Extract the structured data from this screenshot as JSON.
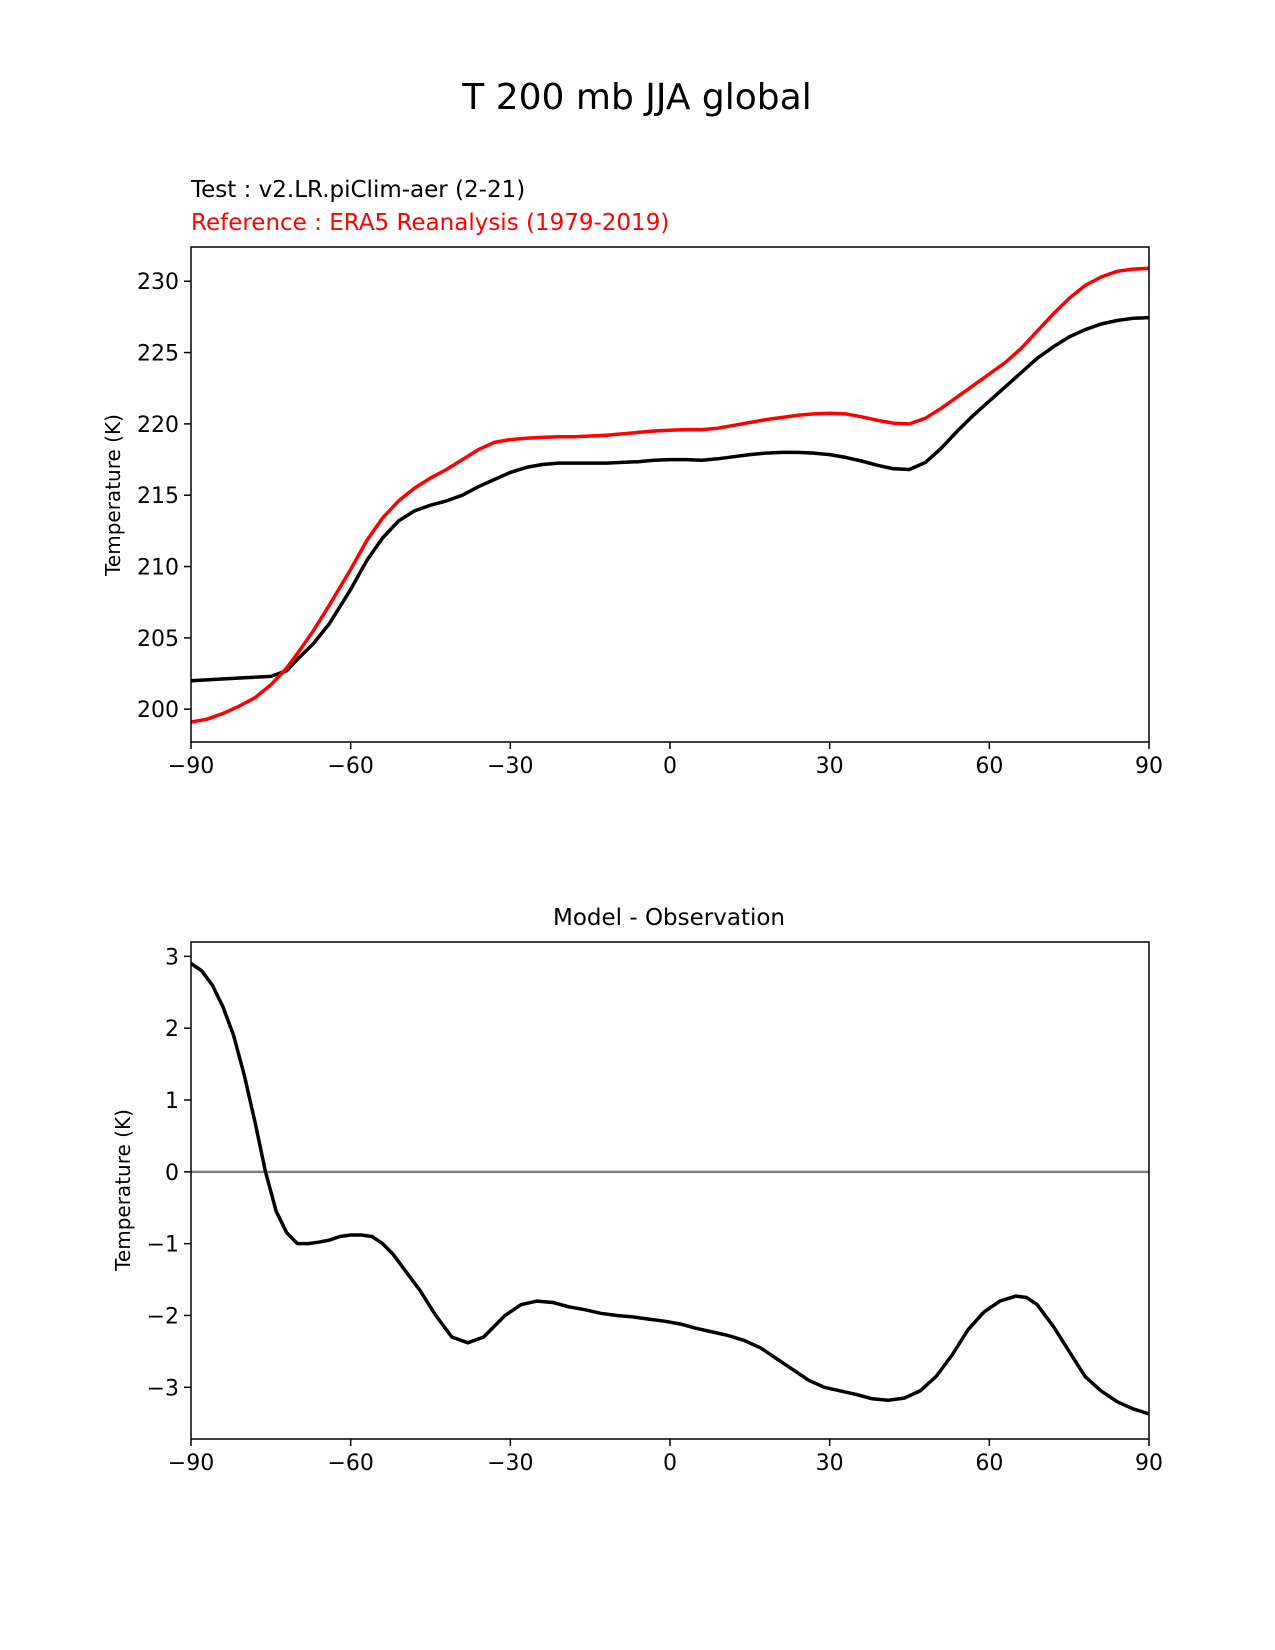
{
  "figure_title": "T 200 mb JJA global",
  "chart_data": [
    {
      "type": "line",
      "test_label": "Test : v2.LR.piClim-aer (2-21)",
      "reference_label": "Reference : ERA5 Reanalysis (1979-2019)",
      "xlabel": "",
      "ylabel": "Temperature (K)",
      "xlim": [
        -90,
        90
      ],
      "ylim": [
        197.7,
        232.4
      ],
      "xticks": [
        -90,
        -60,
        -30,
        0,
        30,
        60,
        90
      ],
      "xtick_labels": [
        "−90",
        "−60",
        "−30",
        "0",
        "30",
        "60",
        "90"
      ],
      "yticks": [
        200,
        205,
        210,
        215,
        220,
        225,
        230
      ],
      "ytick_labels": [
        "200",
        "205",
        "210",
        "215",
        "220",
        "225",
        "230"
      ],
      "grid": false,
      "colors": {
        "test": "#000000",
        "reference": "#ff0000"
      },
      "series": [
        {
          "role": "test",
          "x": [
            -90,
            -85,
            -80,
            -75,
            -72,
            -70,
            -67,
            -64,
            -60,
            -57,
            -54,
            -51,
            -48,
            -45,
            -42,
            -39,
            -36,
            -33,
            -30,
            -27,
            -24,
            -21,
            -18,
            -15,
            -12,
            -9,
            -6,
            -3,
            0,
            3,
            6,
            9,
            12,
            15,
            18,
            21,
            24,
            27,
            30,
            33,
            36,
            39,
            42,
            45,
            48,
            51,
            54,
            57,
            60,
            63,
            66,
            69,
            72,
            75,
            78,
            81,
            84,
            87,
            90
          ],
          "values": [
            202.0,
            202.1,
            202.2,
            202.3,
            202.7,
            203.5,
            204.6,
            206.0,
            208.4,
            210.4,
            212.0,
            213.2,
            213.9,
            214.3,
            214.6,
            215.0,
            215.6,
            216.1,
            216.6,
            216.95,
            217.15,
            217.25,
            217.25,
            217.25,
            217.25,
            217.3,
            217.35,
            217.45,
            217.5,
            217.5,
            217.45,
            217.55,
            217.7,
            217.85,
            217.95,
            218.0,
            218.0,
            217.95,
            217.85,
            217.65,
            217.4,
            217.1,
            216.85,
            216.8,
            217.3,
            218.3,
            219.5,
            220.6,
            221.6,
            222.6,
            223.6,
            224.6,
            225.4,
            226.1,
            226.6,
            227.0,
            227.25,
            227.4,
            227.45
          ]
        },
        {
          "role": "reference",
          "x": [
            -90,
            -87,
            -84,
            -81,
            -78,
            -75,
            -72,
            -70,
            -67,
            -64,
            -60,
            -57,
            -54,
            -51,
            -48,
            -45,
            -42,
            -39,
            -36,
            -33,
            -30,
            -27,
            -24,
            -21,
            -18,
            -15,
            -12,
            -9,
            -6,
            -3,
            0,
            3,
            6,
            9,
            12,
            15,
            18,
            21,
            24,
            27,
            30,
            33,
            36,
            39,
            42,
            45,
            48,
            51,
            54,
            57,
            60,
            63,
            66,
            69,
            72,
            75,
            78,
            81,
            84,
            87,
            90
          ],
          "values": [
            199.1,
            199.3,
            199.7,
            200.2,
            200.8,
            201.7,
            202.9,
            203.9,
            205.5,
            207.3,
            209.8,
            211.8,
            213.4,
            214.6,
            215.5,
            216.2,
            216.8,
            217.5,
            218.2,
            218.7,
            218.9,
            219.0,
            219.05,
            219.1,
            219.1,
            219.15,
            219.2,
            219.3,
            219.4,
            219.5,
            219.55,
            219.6,
            219.6,
            219.7,
            219.9,
            220.1,
            220.3,
            220.45,
            220.6,
            220.7,
            220.75,
            220.7,
            220.5,
            220.25,
            220.05,
            220.0,
            220.4,
            221.1,
            221.9,
            222.7,
            223.5,
            224.3,
            225.3,
            226.5,
            227.7,
            228.8,
            229.7,
            230.3,
            230.7,
            230.85,
            230.9
          ]
        }
      ]
    },
    {
      "type": "line",
      "title": "Model - Observation",
      "xlabel": "",
      "ylabel": "Temperature (K)",
      "xlim": [
        -90,
        90
      ],
      "ylim": [
        -3.72,
        3.2
      ],
      "xticks": [
        -90,
        -60,
        -30,
        0,
        30,
        60,
        90
      ],
      "xtick_labels": [
        "−90",
        "−60",
        "−30",
        "0",
        "30",
        "60",
        "90"
      ],
      "yticks": [
        -3,
        -2,
        -1,
        0,
        1,
        2,
        3
      ],
      "ytick_labels": [
        "−3",
        "−2",
        "−1",
        "0",
        "1",
        "2",
        "3"
      ],
      "grid": false,
      "zero_line": 0,
      "colors": {
        "line": "#000000",
        "zero_line": "#808080"
      },
      "series": [
        {
          "x": [
            -90,
            -88,
            -86,
            -84,
            -82,
            -80,
            -78,
            -76,
            -74,
            -72,
            -70,
            -68,
            -66,
            -64,
            -62,
            -60,
            -58,
            -56,
            -54,
            -52,
            -50,
            -47,
            -44,
            -41,
            -38,
            -35,
            -33,
            -31,
            -28,
            -25,
            -22,
            -19,
            -16,
            -13,
            -10,
            -7,
            -4,
            -1,
            2,
            5,
            8,
            11,
            14,
            17,
            20,
            23,
            26,
            29,
            32,
            35,
            38,
            41,
            44,
            47,
            50,
            53,
            56,
            59,
            62,
            65,
            67,
            69,
            72,
            75,
            78,
            81,
            84,
            87,
            90
          ],
          "values": [
            2.9,
            2.8,
            2.6,
            2.3,
            1.9,
            1.35,
            0.7,
            0.0,
            -0.55,
            -0.85,
            -1.0,
            -1.0,
            -0.98,
            -0.95,
            -0.9,
            -0.88,
            -0.88,
            -0.9,
            -1.0,
            -1.15,
            -1.35,
            -1.65,
            -2.0,
            -2.3,
            -2.38,
            -2.3,
            -2.15,
            -2.0,
            -1.85,
            -1.8,
            -1.82,
            -1.88,
            -1.92,
            -1.97,
            -2.0,
            -2.02,
            -2.05,
            -2.08,
            -2.12,
            -2.18,
            -2.23,
            -2.28,
            -2.35,
            -2.45,
            -2.6,
            -2.75,
            -2.9,
            -3.0,
            -3.05,
            -3.1,
            -3.16,
            -3.18,
            -3.15,
            -3.05,
            -2.85,
            -2.55,
            -2.2,
            -1.95,
            -1.8,
            -1.73,
            -1.75,
            -1.85,
            -2.15,
            -2.5,
            -2.85,
            -3.05,
            -3.2,
            -3.3,
            -3.37
          ]
        }
      ]
    }
  ]
}
